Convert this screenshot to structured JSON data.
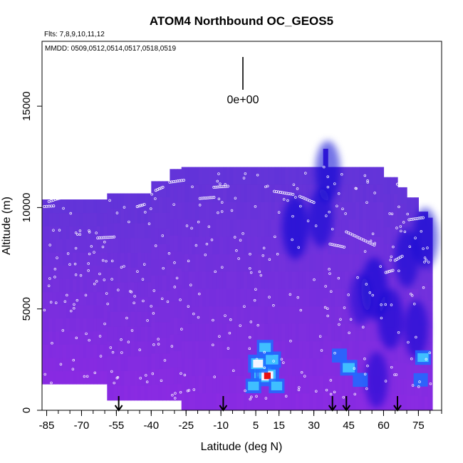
{
  "chart_data": {
    "type": "heatmap",
    "title": "ATOM4 Northbound OC_GEOS5",
    "flights_note": "Flts: 7,8,9,10,11,12",
    "dates_note": "MMDD: 0509,0512,0514,0517,0518,0519",
    "xlabel": "Latitude (deg N)",
    "ylabel": "Altitude (m)",
    "xlim": [
      -87,
      85
    ],
    "ylim": [
      0,
      18200
    ],
    "x_ticks": [
      -85,
      -70,
      -55,
      -40,
      -25,
      -10,
      5,
      15,
      30,
      45,
      60,
      75
    ],
    "x_tick_labels": [
      "-85",
      "-70",
      "-55",
      "-40",
      "-25",
      "-10",
      "5",
      "15",
      "30",
      "45",
      "60",
      "75"
    ],
    "y_ticks": [
      0,
      5000,
      10000,
      15000
    ],
    "y_tick_labels": [
      "0",
      "5000",
      "10000",
      "15000"
    ],
    "scale_label": "0e+00",
    "colors": {
      "low": "#8a2be2",
      "mid": "#1e90ff",
      "high": "#ff0000",
      "background": "#ffffff"
    },
    "arrow_latitudes": [
      -54,
      -9,
      38,
      44,
      66
    ],
    "columns": [
      {
        "x0": -87,
        "x1": -59,
        "top": 10400,
        "bottom": 1300
      },
      {
        "x0": -59,
        "x1": -40,
        "top": 10700,
        "bottom": 500
      },
      {
        "x0": -40,
        "x1": -32,
        "top": 11300,
        "bottom": 500
      },
      {
        "x0": -32,
        "x1": -27,
        "top": 11900,
        "bottom": 500
      },
      {
        "x0": -27,
        "x1": 34,
        "top": 12000,
        "bottom": 0
      },
      {
        "x0": 34,
        "x1": 36,
        "top": 12900,
        "bottom": 0
      },
      {
        "x0": 36,
        "x1": 60,
        "top": 12000,
        "bottom": 0
      },
      {
        "x0": 60,
        "x1": 66,
        "top": 11500,
        "bottom": 0
      },
      {
        "x0": 66,
        "x1": 70,
        "top": 11000,
        "bottom": 0
      },
      {
        "x0": 70,
        "x1": 75,
        "top": 10500,
        "bottom": 0
      },
      {
        "x0": 75,
        "x1": 79,
        "top": 9800,
        "bottom": 0
      },
      {
        "x0": 79,
        "x1": 81,
        "top": 9500,
        "bottom": 0
      }
    ],
    "hotspots": [
      {
        "lat": 8,
        "alt": 1900,
        "value": 1.0
      },
      {
        "lat": 10,
        "alt": 1700,
        "value": 0.95
      },
      {
        "lat": 6,
        "alt": 2300,
        "value": 0.7
      },
      {
        "lat": 12,
        "alt": 2500,
        "value": 0.55
      },
      {
        "lat": 9,
        "alt": 3100,
        "value": 0.45
      },
      {
        "lat": 4,
        "alt": 1200,
        "value": 0.4
      },
      {
        "lat": 14,
        "alt": 1200,
        "value": 0.4
      },
      {
        "lat": 45,
        "alt": 2100,
        "value": 0.5
      },
      {
        "lat": 41,
        "alt": 2700,
        "value": 0.35
      },
      {
        "lat": 50,
        "alt": 1500,
        "value": 0.35
      },
      {
        "lat": 77,
        "alt": 2600,
        "value": 0.4
      },
      {
        "lat": 76,
        "alt": 1500,
        "value": 0.3
      }
    ],
    "dark_bands": [
      {
        "lat": 22,
        "alt": 9000,
        "value": 0.6
      },
      {
        "lat": 33,
        "alt": 9500,
        "value": 0.5
      },
      {
        "lat": 36,
        "alt": 11800,
        "value": 0.55
      },
      {
        "lat": 56,
        "alt": 6000,
        "value": 0.6
      },
      {
        "lat": 63,
        "alt": 4500,
        "value": 0.55
      },
      {
        "lat": 70,
        "alt": 7500,
        "value": 0.5
      },
      {
        "lat": 78,
        "alt": 8500,
        "value": 0.55
      },
      {
        "lat": 74,
        "alt": 4000,
        "value": 0.5
      },
      {
        "lat": 57,
        "alt": 1500,
        "value": 0.45
      },
      {
        "lat": 50,
        "alt": 5500,
        "value": 0.35
      }
    ],
    "flight_track_segments": [
      {
        "lat0": -86,
        "lat1": -82,
        "alt0": 10050,
        "alt1": 10080
      },
      {
        "lat0": -84,
        "lat1": -74,
        "alt0": 10300,
        "alt1": 10650
      },
      {
        "lat0": -74,
        "lat1": -64,
        "alt0": 10700,
        "alt1": 11000
      },
      {
        "lat0": -63,
        "lat1": -56,
        "alt0": 8500,
        "alt1": 8550
      },
      {
        "lat0": -46,
        "lat1": -43,
        "alt0": 10050,
        "alt1": 10150
      },
      {
        "lat0": -38,
        "lat1": -35,
        "alt0": 10850,
        "alt1": 11000
      },
      {
        "lat0": -32,
        "lat1": -26,
        "alt0": 11250,
        "alt1": 11350
      },
      {
        "lat0": -19,
        "lat1": -13,
        "alt0": 10450,
        "alt1": 10500
      },
      {
        "lat0": -13,
        "lat1": -7,
        "alt0": 11000,
        "alt1": 11050
      },
      {
        "lat0": 13,
        "lat1": 21,
        "alt0": 10800,
        "alt1": 10650
      },
      {
        "lat0": 24,
        "lat1": 30,
        "alt0": 10550,
        "alt1": 10250
      },
      {
        "lat0": 44,
        "lat1": 56,
        "alt0": 8800,
        "alt1": 8150
      },
      {
        "lat0": 37,
        "lat1": 43,
        "alt0": 8200,
        "alt1": 8050
      },
      {
        "lat0": 66,
        "lat1": 72,
        "alt0": 11150,
        "alt1": 11400
      },
      {
        "lat0": 71,
        "lat1": 77,
        "alt0": 9400,
        "alt1": 9500
      },
      {
        "lat0": 65,
        "lat1": 68,
        "alt0": 7400,
        "alt1": 7600
      },
      {
        "lat0": 61,
        "lat1": 64,
        "alt0": 6800,
        "alt1": 6900
      }
    ],
    "random_point_count": 340
  }
}
